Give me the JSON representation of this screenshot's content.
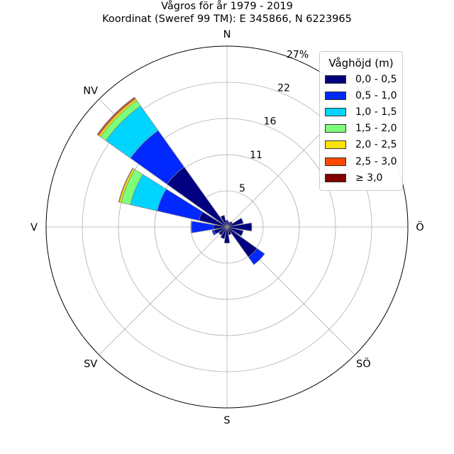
{
  "title": {
    "line1": "Vågros för år 1979 - 2019",
    "line2": "Koordinat (Sweref 99 TM): E 345866, N 6223965"
  },
  "chart_data": {
    "type": "windrose",
    "directions": [
      "N",
      "NO",
      "Ö",
      "SÖ",
      "S",
      "SV",
      "V",
      "NV"
    ],
    "radial_ticks": [
      "5",
      "11",
      "16",
      "22",
      "27%"
    ],
    "radial_tick_values": [
      5.4,
      10.8,
      16.2,
      21.6,
      27
    ],
    "rmax": 27,
    "sector_angles_deg": [
      0,
      22.5,
      45,
      67.5,
      90,
      112.5,
      135,
      157.5,
      180,
      202.5,
      225,
      247.5,
      270,
      292.5,
      315,
      337.5
    ],
    "legend_title": "Våghöjd (m)",
    "series": [
      {
        "name": "0,0 - 0,5",
        "color": "#000080",
        "values": [
          1.0,
          0.8,
          1.0,
          2.5,
          3.7,
          2.5,
          5.5,
          1.2,
          2.4,
          1.8,
          1.5,
          2.0,
          2.0,
          4.3,
          11.0,
          1.8
        ]
      },
      {
        "name": "0,5 - 1,0",
        "color": "#0028ff",
        "values": [
          0.0,
          0.0,
          0.0,
          0.0,
          0.0,
          0.0,
          1.4,
          0.0,
          0.0,
          0.0,
          0.0,
          0.3,
          3.3,
          6.4,
          6.7,
          0.0
        ]
      },
      {
        "name": "1,0 - 1,5",
        "color": "#00d4ff",
        "values": [
          0.0,
          0.0,
          0.0,
          0.0,
          0.0,
          0.0,
          0.0,
          0.0,
          0.0,
          0.0,
          0.0,
          0.0,
          0.1,
          4.1,
          4.5,
          0.0
        ]
      },
      {
        "name": "1,5 - 2,0",
        "color": "#7dff7a",
        "values": [
          0.0,
          0.0,
          0.0,
          0.0,
          0.0,
          0.0,
          0.0,
          0.0,
          0.0,
          0.0,
          0.0,
          0.0,
          0.0,
          1.4,
          1.0,
          0.0
        ]
      },
      {
        "name": "2,0 - 2,5",
        "color": "#fce300",
        "values": [
          0.0,
          0.0,
          0.0,
          0.0,
          0.0,
          0.0,
          0.0,
          0.0,
          0.0,
          0.0,
          0.0,
          0.0,
          0.0,
          0.3,
          0.3,
          0.0
        ]
      },
      {
        "name": "2,5 - 3,0",
        "color": "#ff4800",
        "values": [
          0.0,
          0.0,
          0.0,
          0.0,
          0.0,
          0.0,
          0.0,
          0.0,
          0.0,
          0.0,
          0.0,
          0.0,
          0.0,
          0.1,
          0.2,
          0.0
        ]
      },
      {
        "name": "≥ 3,0",
        "color": "#800000",
        "values": [
          0.0,
          0.0,
          0.0,
          0.0,
          0.0,
          0.0,
          0.0,
          0.0,
          0.0,
          0.0,
          0.0,
          0.0,
          0.0,
          0.0,
          0.1,
          0.0
        ]
      }
    ],
    "grid": true,
    "legend_position": "top-right"
  }
}
